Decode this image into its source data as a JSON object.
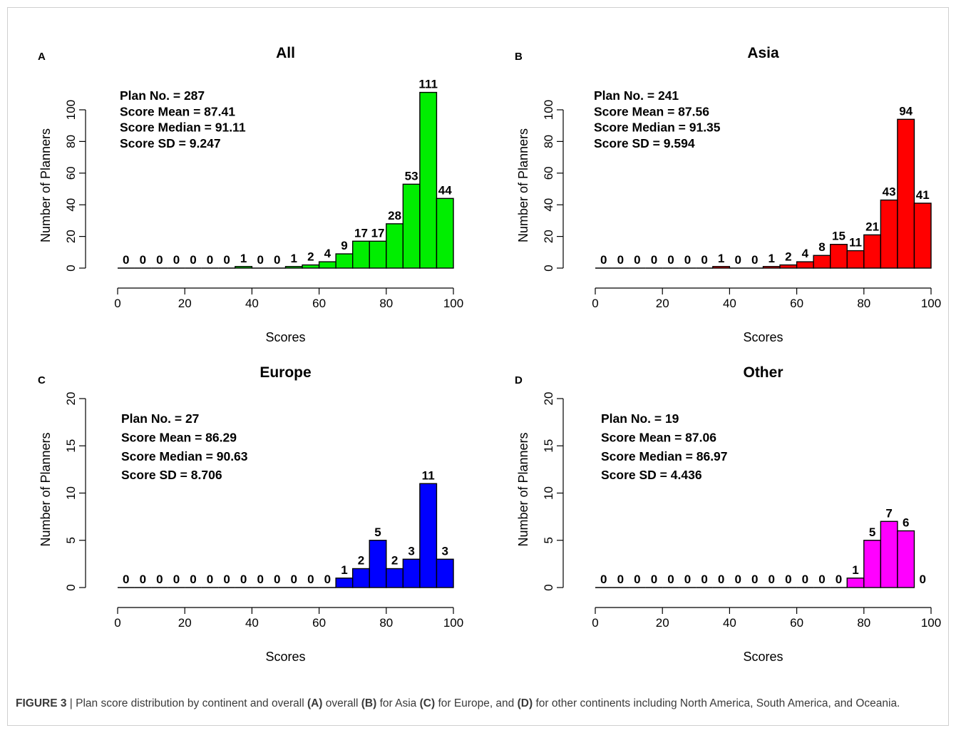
{
  "chart_data": [
    {
      "panel_letter": "A",
      "type": "bar",
      "title": "All",
      "xlabel": "Scores",
      "ylabel": "Number of Planners",
      "xlim": [
        0,
        100
      ],
      "ylim": [
        0,
        111
      ],
      "x_ticks": [
        0,
        20,
        40,
        60,
        80,
        100
      ],
      "y_ticks": [
        0,
        20,
        40,
        60,
        80,
        100
      ],
      "bin_width": 5,
      "bin_starts": [
        0,
        5,
        10,
        15,
        20,
        25,
        30,
        35,
        40,
        45,
        50,
        55,
        60,
        65,
        70,
        75,
        80,
        85,
        90,
        95
      ],
      "values": [
        0,
        0,
        0,
        0,
        0,
        0,
        0,
        1,
        0,
        0,
        1,
        2,
        4,
        9,
        17,
        17,
        28,
        53,
        111,
        44
      ],
      "bar_color": "#00ee00",
      "stats": [
        "Plan No. =  287",
        "Score Mean =  87.41",
        "Score Median =  91.11",
        "Score SD =  9.247"
      ],
      "grid": false
    },
    {
      "panel_letter": "B",
      "type": "bar",
      "title": "Asia",
      "xlabel": "Scores",
      "ylabel": "Number of Planners",
      "xlim": [
        0,
        100
      ],
      "ylim": [
        0,
        111
      ],
      "x_ticks": [
        0,
        20,
        40,
        60,
        80,
        100
      ],
      "y_ticks": [
        0,
        20,
        40,
        60,
        80,
        100
      ],
      "bin_width": 5,
      "bin_starts": [
        0,
        5,
        10,
        15,
        20,
        25,
        30,
        35,
        40,
        45,
        50,
        55,
        60,
        65,
        70,
        75,
        80,
        85,
        90,
        95
      ],
      "values": [
        0,
        0,
        0,
        0,
        0,
        0,
        0,
        1,
        0,
        0,
        1,
        2,
        4,
        8,
        15,
        11,
        21,
        43,
        94,
        41
      ],
      "bar_color": "#ff0000",
      "stats": [
        "Plan No. =  241",
        "Score Mean =  87.56",
        "Score Median =  91.35",
        "Score SD =  9.594"
      ],
      "grid": false
    },
    {
      "panel_letter": "C",
      "type": "bar",
      "title": "Europe",
      "xlabel": "Scores",
      "ylabel": "Number of Planners",
      "xlim": [
        0,
        100
      ],
      "ylim": [
        0,
        20
      ],
      "x_ticks": [
        0,
        20,
        40,
        60,
        80,
        100
      ],
      "y_ticks": [
        0,
        5,
        10,
        15,
        20
      ],
      "bin_width": 5,
      "bin_starts": [
        0,
        5,
        10,
        15,
        20,
        25,
        30,
        35,
        40,
        45,
        50,
        55,
        60,
        65,
        70,
        75,
        80,
        85,
        90,
        95
      ],
      "values": [
        0,
        0,
        0,
        0,
        0,
        0,
        0,
        0,
        0,
        0,
        0,
        0,
        0,
        1,
        2,
        5,
        2,
        3,
        11,
        3
      ],
      "bar_color": "#0000ff",
      "stats": [
        "Plan No. =  27",
        "Score Mean =  86.29",
        "Score Median =  90.63",
        "Score SD =  8.706"
      ],
      "grid": false
    },
    {
      "panel_letter": "D",
      "type": "bar",
      "title": "Other",
      "xlabel": "Scores",
      "ylabel": "Number of Planners",
      "xlim": [
        0,
        100
      ],
      "ylim": [
        0,
        20
      ],
      "x_ticks": [
        0,
        20,
        40,
        60,
        80,
        100
      ],
      "y_ticks": [
        0,
        5,
        10,
        15,
        20
      ],
      "bin_width": 5,
      "bin_starts": [
        0,
        5,
        10,
        15,
        20,
        25,
        30,
        35,
        40,
        45,
        50,
        55,
        60,
        65,
        70,
        75,
        80,
        85,
        90
      ],
      "values": [
        0,
        0,
        0,
        0,
        0,
        0,
        0,
        0,
        0,
        0,
        0,
        0,
        0,
        0,
        0,
        1,
        5,
        7,
        6
      ],
      "extra_label": {
        "x": 97.5,
        "text": "0"
      },
      "bar_color": "#ff00ff",
      "stats": [
        "Plan No. =  19",
        "Score Mean =  87.06",
        "Score Median =  86.97",
        "Score SD =  4.436"
      ],
      "grid": false
    }
  ],
  "caption": {
    "figure_label": "FIGURE 3",
    "separator": " | ",
    "text_1": "Plan score distribution by continent and overall ",
    "label_a": "(A)",
    "text_2": " overall ",
    "label_b": "(B)",
    "text_3": " for Asia ",
    "label_c": "(C)",
    "text_4": " for Europe, and ",
    "label_d": "(D)",
    "text_5": " for other continents including North America, South America, and Oceania."
  }
}
